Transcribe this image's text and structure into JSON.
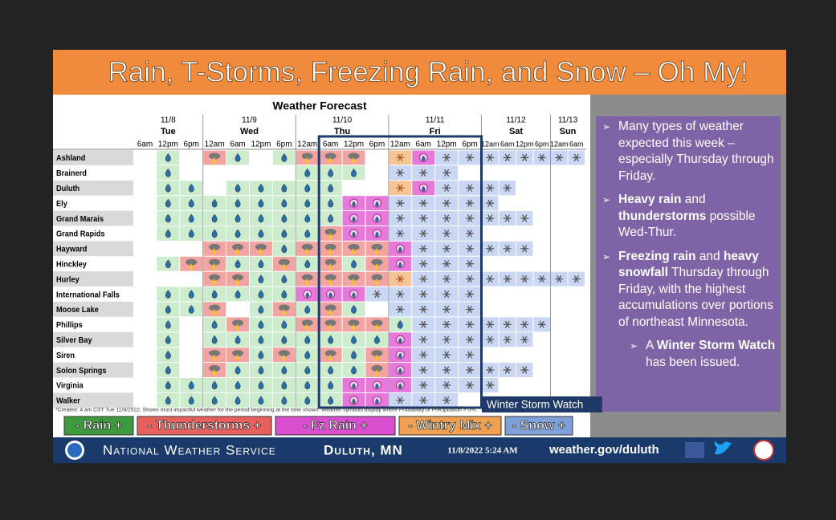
{
  "header": {
    "title": "Rain, T-Storms, Freezing Rain, and Snow – Oh My!"
  },
  "forecast": {
    "title": "Weather Forecast",
    "dates": [
      {
        "date": "11/8",
        "day": "Tue"
      },
      {
        "date": "11/9",
        "day": "Wed"
      },
      {
        "date": "11/10",
        "day": "Thu"
      },
      {
        "date": "11/11",
        "day": "Fri"
      },
      {
        "date": "11/12",
        "day": "Sat"
      },
      {
        "date": "11/13",
        "day": "Sun"
      }
    ],
    "times": [
      "6am",
      "12pm",
      "6pm",
      "12am",
      "6am",
      "12pm",
      "6pm",
      "12am",
      "6am",
      "12pm",
      "6pm",
      "12am",
      "6am",
      "12pm",
      "6pm",
      "12am",
      "6am",
      "12pm",
      "6pm",
      "12am",
      "6am"
    ],
    "locations": [
      "Ashland",
      "Brainerd",
      "Duluth",
      "Ely",
      "Grand Marais",
      "Grand Rapids",
      "Hayward",
      "Hinckley",
      "Hurley",
      "International Falls",
      "Moose Lake",
      "Phillips",
      "Silver Bay",
      "Siren",
      "Solon Springs",
      "Virginia",
      "Walker"
    ],
    "footnote": "*Created: 4 am CST Tue 11/8/2022. Shows most impactful weather for the period beginning at the time shown. Weather symbols display where Probability of Precipitation > 0%.",
    "watch_label": "Winter Storm Watch"
  },
  "legend": [
    "- Rain +",
    "- Thunderstorms +",
    "- Fz Rain +",
    "- Wintry Mix +",
    "- Snow +"
  ],
  "bullets": [
    {
      "level": 1,
      "parts": [
        {
          "text": "Many types of weather expected this week – especially Thursday through Friday."
        }
      ]
    },
    {
      "level": 1,
      "parts": [
        {
          "text": "Heavy rain",
          "bold": true
        },
        {
          "text": " and "
        },
        {
          "text": "thunderstorms",
          "bold": true
        },
        {
          "text": " possible Wed-Thur."
        }
      ]
    },
    {
      "level": 1,
      "parts": [
        {
          "text": "Freezing rain",
          "bold": true
        },
        {
          "text": " and "
        },
        {
          "text": "heavy snowfall",
          "bold": true
        },
        {
          "text": " Thursday through Friday, with the highest accumulations over portions of northeast Minnesota."
        }
      ]
    },
    {
      "level": 2,
      "parts": [
        {
          "text": "A "
        },
        {
          "text": "Winter Storm Watch",
          "bold": true
        },
        {
          "text": " has been issued."
        }
      ]
    }
  ],
  "footer": {
    "agency": "National Weather Service",
    "office": "Duluth, MN",
    "timestamp": "11/8/2022 5:24 AM",
    "url": "weather.gov/duluth"
  }
}
